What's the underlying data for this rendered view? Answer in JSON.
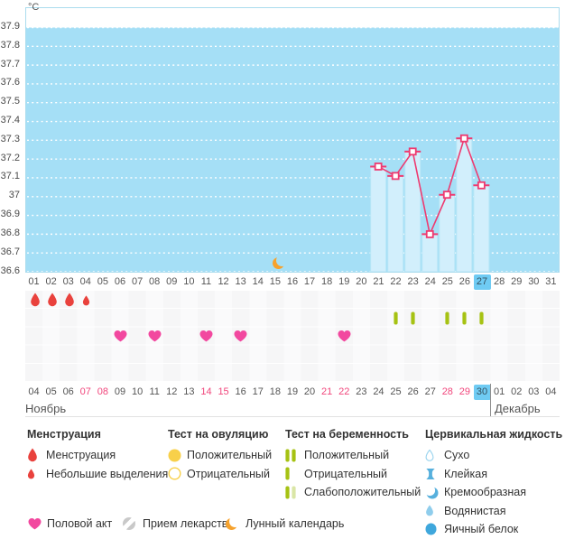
{
  "chart": {
    "unit": "°C",
    "y_ticks": [
      "37.9",
      "37.8",
      "37.7",
      "37.6",
      "37.5",
      "37.4",
      "37.3",
      "37.2",
      "37.1",
      "37",
      "36.9",
      "36.8",
      "36.7",
      "36.6"
    ]
  },
  "chart_data": {
    "type": "line",
    "title": "",
    "xlabel": "",
    "ylabel": "°C",
    "ylim": [
      36.6,
      38.0
    ],
    "y_tick_step": 0.1,
    "grid": true,
    "x_days": [
      21,
      22,
      23,
      24,
      25,
      26,
      27
    ],
    "values": [
      37.16,
      37.11,
      37.24,
      36.8,
      37.01,
      37.31,
      37.06
    ],
    "bars_behind_points": true,
    "selected_cycle_day": 27,
    "lunar_calendar_day": 15
  },
  "calendar": {
    "cycle_days": [
      "01",
      "02",
      "03",
      "04",
      "05",
      "06",
      "07",
      "08",
      "09",
      "10",
      "11",
      "12",
      "13",
      "14",
      "15",
      "16",
      "17",
      "18",
      "19",
      "20",
      "21",
      "22",
      "23",
      "24",
      "25",
      "26",
      "27",
      "28",
      "29",
      "30",
      "31"
    ],
    "selected_cycle_day": "27",
    "dates": [
      {
        "label": "04"
      },
      {
        "label": "05"
      },
      {
        "label": "06"
      },
      {
        "label": "07",
        "weekend": true
      },
      {
        "label": "08",
        "weekend": true
      },
      {
        "label": "09"
      },
      {
        "label": "10"
      },
      {
        "label": "11"
      },
      {
        "label": "12"
      },
      {
        "label": "13"
      },
      {
        "label": "14",
        "weekend": true
      },
      {
        "label": "15",
        "weekend": true
      },
      {
        "label": "16"
      },
      {
        "label": "17"
      },
      {
        "label": "18"
      },
      {
        "label": "19"
      },
      {
        "label": "20"
      },
      {
        "label": "21",
        "weekend": true
      },
      {
        "label": "22",
        "weekend": true
      },
      {
        "label": "23"
      },
      {
        "label": "24"
      },
      {
        "label": "25"
      },
      {
        "label": "26"
      },
      {
        "label": "27"
      },
      {
        "label": "28",
        "weekend": true
      },
      {
        "label": "29",
        "weekend": true
      },
      {
        "label": "30",
        "selected": true
      },
      {
        "label": "01"
      },
      {
        "label": "02"
      },
      {
        "label": "03"
      },
      {
        "label": "04"
      }
    ],
    "month_left": "Ноябрь",
    "month_right": "Декабрь"
  },
  "events": {
    "menstruation": [
      {
        "day": 1,
        "size": "large"
      },
      {
        "day": 2,
        "size": "large"
      },
      {
        "day": 3,
        "size": "large"
      },
      {
        "day": 4,
        "size": "small"
      }
    ],
    "pregnancy_test_negative_days": [
      22,
      23,
      25,
      26,
      27
    ],
    "intercourse_days": [
      6,
      8,
      11,
      13,
      19
    ],
    "lunar_calendar_day": 15
  },
  "legend": {
    "sections": [
      {
        "title": "Менструация",
        "items": [
          {
            "icon": "drop-large-icon",
            "label": "Менструация"
          },
          {
            "icon": "drop-small-icon",
            "label": "Небольшие выделения"
          }
        ]
      },
      {
        "title": "Тест на овуляцию",
        "items": [
          {
            "icon": "circle-filled-yellow-icon",
            "label": "Положительный"
          },
          {
            "icon": "circle-outline-yellow-icon",
            "label": "Отрицательный"
          }
        ]
      },
      {
        "title": "Тест на беременность",
        "items": [
          {
            "icon": "test-double-bar-icon",
            "label": "Положительный"
          },
          {
            "icon": "test-single-bar-icon",
            "label": "Отрицательный"
          },
          {
            "icon": "test-weak-bar-icon",
            "label": "Слабоположительный"
          }
        ]
      },
      {
        "title": "Цервикальная жидкость",
        "items": [
          {
            "icon": "droplet-outline-icon",
            "label": "Сухо"
          },
          {
            "icon": "sticky-icon",
            "label": "Клейкая"
          },
          {
            "icon": "creamy-icon",
            "label": "Кремообразная"
          },
          {
            "icon": "watery-drop-icon",
            "label": "Водянистая"
          },
          {
            "icon": "eggwhite-circle-icon",
            "label": "Яичный белок"
          }
        ]
      }
    ],
    "bottom_items": [
      {
        "icon": "heart-icon",
        "label": "Половой акт"
      },
      {
        "icon": "pill-icon",
        "label": "Прием лекарств"
      },
      {
        "icon": "moon-icon",
        "label": "Лунный календарь"
      }
    ]
  },
  "colors": {
    "chart_background": "#a5dff6",
    "bar_fill": "#d2effc",
    "bar_edge": "#b7e6f7",
    "line_pink": "#ee3a70",
    "selected_day_blue": "#6fcbf3",
    "weekend_red": "#f1467c",
    "menstruation_red": "#e9423d",
    "intercourse_pink": "#f2489f",
    "test_green": "#a6c213",
    "test_green_pale": "#dae6a6",
    "ovulation_yellow": "#f8d04a",
    "cervical_blue": "#57b0dd",
    "moon_orange": "#f6a22d"
  }
}
